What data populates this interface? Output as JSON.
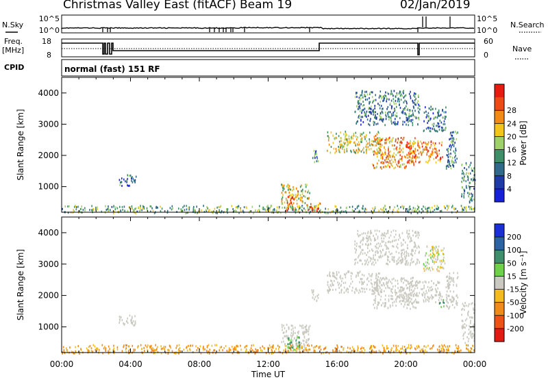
{
  "header": {
    "station": "Christmas Valley East (fitACF)",
    "beam": "Beam 19",
    "date": "02/Jan/2019"
  },
  "panels": {
    "nsky_label": "N.Sky",
    "nsky_ticks": [
      "10^5",
      "10^0"
    ],
    "nsearch_label": "N.Search",
    "nsearch_ticks": [
      "10^5",
      "10^0"
    ],
    "freq_label_1": "Freq.",
    "freq_label_2": "[MHz]",
    "freq_ticks": [
      "18",
      "8"
    ],
    "nave_label": "Nave",
    "nave_ticks": [
      "60",
      "0"
    ],
    "cpid_label": "CPID",
    "cpid_value": "normal (fast) 151 RF"
  },
  "colors": {
    "power": [
      "#1520d8",
      "#1e3ba8",
      "#2f6a8a",
      "#3f8f68",
      "#9fd16a",
      "#f3c51a",
      "#f48a16",
      "#ee4a16",
      "#e81b10"
    ],
    "velocity": [
      "#1a2fd6",
      "#2a64a2",
      "#3f8f6c",
      "#6fd04a",
      "#c9c9c0",
      "#f4bb1e",
      "#f08a18",
      "#ee5216",
      "#e21a12"
    ]
  },
  "chart_data": [
    {
      "type": "heatmap",
      "quantity": "power",
      "xlabel": "",
      "ylabel": "Slant Range [km]",
      "xlim": [
        0,
        24
      ],
      "ylim": [
        180,
        4500
      ],
      "yticks": [
        1000,
        2000,
        3000,
        4000
      ],
      "colorbar_label": "Power [dB]",
      "colorbar_ticks": [
        "4",
        "8",
        "12",
        "16",
        "20",
        "24",
        "28"
      ],
      "colorbar_range": [
        0,
        32
      ],
      "regions": [
        {
          "t": [
            0,
            24
          ],
          "r": [
            180,
            420
          ],
          "value": 14
        },
        {
          "t": [
            3.3,
            4.3
          ],
          "r": [
            1050,
            1400
          ],
          "value": 9
        },
        {
          "t": [
            12.7,
            14.4
          ],
          "r": [
            350,
            1100
          ],
          "value": 18
        },
        {
          "t": [
            13.0,
            13.6
          ],
          "r": [
            250,
            700
          ],
          "value": 27
        },
        {
          "t": [
            14.2,
            15.0
          ],
          "r": [
            250,
            500
          ],
          "value": 26
        },
        {
          "t": [
            14.5,
            14.9
          ],
          "r": [
            1800,
            2200
          ],
          "value": 9
        },
        {
          "t": [
            15.4,
            18.5
          ],
          "r": [
            2100,
            2800
          ],
          "value": 18
        },
        {
          "t": [
            18.0,
            20.6
          ],
          "r": [
            1600,
            2600
          ],
          "value": 22
        },
        {
          "t": [
            20.0,
            22.1
          ],
          "r": [
            1800,
            2500
          ],
          "value": 24
        },
        {
          "t": [
            17.0,
            20.8
          ],
          "r": [
            3000,
            4100
          ],
          "value": 10
        },
        {
          "t": [
            21.0,
            22.3
          ],
          "r": [
            2800,
            3600
          ],
          "value": 9
        },
        {
          "t": [
            22.3,
            23.0
          ],
          "r": [
            1600,
            2800
          ],
          "value": 10
        },
        {
          "t": [
            23.2,
            24.0
          ],
          "r": [
            500,
            1800
          ],
          "value": 11
        }
      ]
    },
    {
      "type": "heatmap",
      "quantity": "velocity",
      "xlabel": "Time UT",
      "ylabel": "Slant Range [km]",
      "xlim": [
        0,
        24
      ],
      "ylim": [
        180,
        4500
      ],
      "yticks": [
        1000,
        2000,
        3000,
        4000
      ],
      "xticks": [
        "00:00",
        "04:00",
        "08:00",
        "12:00",
        "16:00",
        "20:00",
        "00:00"
      ],
      "colorbar_label": "Velocity [m s⁻¹]",
      "colorbar_ticks": [
        "200",
        "100",
        "50",
        "15",
        "-15",
        "-50",
        "-100",
        "-200"
      ],
      "regions": [
        {
          "t": [
            0,
            24
          ],
          "r": [
            180,
            450
          ],
          "value": -60
        },
        {
          "t": [
            3.3,
            4.3
          ],
          "r": [
            1050,
            1400
          ],
          "value": 0
        },
        {
          "t": [
            12.7,
            14.4
          ],
          "r": [
            350,
            1100
          ],
          "value": 0
        },
        {
          "t": [
            13.0,
            13.8
          ],
          "r": [
            250,
            700
          ],
          "value": 40
        },
        {
          "t": [
            14.5,
            14.9
          ],
          "r": [
            1800,
            2200
          ],
          "value": 0
        },
        {
          "t": [
            15.4,
            18.5
          ],
          "r": [
            2100,
            2800
          ],
          "value": 0
        },
        {
          "t": [
            18.0,
            20.6
          ],
          "r": [
            1600,
            2600
          ],
          "value": 0
        },
        {
          "t": [
            20.0,
            22.1
          ],
          "r": [
            1800,
            2500
          ],
          "value": 0
        },
        {
          "t": [
            21.9,
            22.2
          ],
          "r": [
            1650,
            1900
          ],
          "value": 40
        },
        {
          "t": [
            17.0,
            20.8
          ],
          "r": [
            3000,
            4100
          ],
          "value": 0
        },
        {
          "t": [
            21.0,
            22.3
          ],
          "r": [
            2800,
            3600
          ],
          "value": -5
        },
        {
          "t": [
            22.3,
            23.0
          ],
          "r": [
            1600,
            2800
          ],
          "value": 0
        },
        {
          "t": [
            23.2,
            24.0
          ],
          "r": [
            500,
            1800
          ],
          "value": 0
        }
      ]
    }
  ]
}
